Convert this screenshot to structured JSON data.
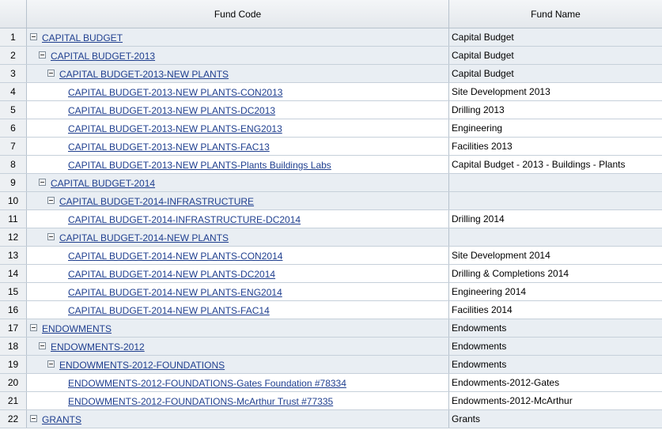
{
  "columns": {
    "fund_code": "Fund Code",
    "fund_name": "Fund Name"
  },
  "rows": [
    {
      "num": "1",
      "level": 0,
      "expandable": true,
      "code": "CAPITAL BUDGET",
      "name": "Capital Budget"
    },
    {
      "num": "2",
      "level": 1,
      "expandable": true,
      "code": "CAPITAL BUDGET-2013",
      "name": "Capital Budget"
    },
    {
      "num": "3",
      "level": 2,
      "expandable": true,
      "code": "CAPITAL BUDGET-2013-NEW PLANTS",
      "name": "Capital Budget"
    },
    {
      "num": "4",
      "level": 3,
      "expandable": false,
      "code": "CAPITAL BUDGET-2013-NEW PLANTS-CON2013",
      "name": "Site Development 2013"
    },
    {
      "num": "5",
      "level": 3,
      "expandable": false,
      "code": "CAPITAL BUDGET-2013-NEW PLANTS-DC2013",
      "name": "Drilling 2013"
    },
    {
      "num": "6",
      "level": 3,
      "expandable": false,
      "code": "CAPITAL BUDGET-2013-NEW PLANTS-ENG2013",
      "name": "Engineering"
    },
    {
      "num": "7",
      "level": 3,
      "expandable": false,
      "code": "CAPITAL BUDGET-2013-NEW PLANTS-FAC13",
      "name": "Facilities 2013"
    },
    {
      "num": "8",
      "level": 3,
      "expandable": false,
      "code": "CAPITAL BUDGET-2013-NEW PLANTS-Plants Buildings Labs",
      "name": "Capital Budget - 2013 - Buildings - Plants"
    },
    {
      "num": "9",
      "level": 1,
      "expandable": true,
      "code": "CAPITAL BUDGET-2014",
      "name": ""
    },
    {
      "num": "10",
      "level": 2,
      "expandable": true,
      "code": "CAPITAL BUDGET-2014-INFRASTRUCTURE",
      "name": ""
    },
    {
      "num": "11",
      "level": 3,
      "expandable": false,
      "code": "CAPITAL BUDGET-2014-INFRASTRUCTURE-DC2014",
      "name": "Drilling 2014"
    },
    {
      "num": "12",
      "level": 2,
      "expandable": true,
      "code": "CAPITAL BUDGET-2014-NEW PLANTS",
      "name": ""
    },
    {
      "num": "13",
      "level": 3,
      "expandable": false,
      "code": "CAPITAL BUDGET-2014-NEW PLANTS-CON2014",
      "name": "Site Development 2014"
    },
    {
      "num": "14",
      "level": 3,
      "expandable": false,
      "code": "CAPITAL BUDGET-2014-NEW PLANTS-DC2014",
      "name": "Drilling & Completions 2014"
    },
    {
      "num": "15",
      "level": 3,
      "expandable": false,
      "code": "CAPITAL BUDGET-2014-NEW PLANTS-ENG2014",
      "name": "Engineering 2014"
    },
    {
      "num": "16",
      "level": 3,
      "expandable": false,
      "code": "CAPITAL BUDGET-2014-NEW PLANTS-FAC14",
      "name": "Facilities 2014"
    },
    {
      "num": "17",
      "level": 0,
      "expandable": true,
      "code": "ENDOWMENTS",
      "name": "Endowments"
    },
    {
      "num": "18",
      "level": 1,
      "expandable": true,
      "code": "ENDOWMENTS-2012",
      "name": "Endowments"
    },
    {
      "num": "19",
      "level": 2,
      "expandable": true,
      "code": "ENDOWMENTS-2012-FOUNDATIONS",
      "name": "Endowments"
    },
    {
      "num": "20",
      "level": 3,
      "expandable": false,
      "code": "ENDOWMENTS-2012-FOUNDATIONS-Gates Foundation #78334",
      "name": "Endowments-2012-Gates"
    },
    {
      "num": "21",
      "level": 3,
      "expandable": false,
      "code": "ENDOWMENTS-2012-FOUNDATIONS-McArthur Trust #77335",
      "name": "Endowments-2012-McArthur"
    },
    {
      "num": "22",
      "level": 0,
      "expandable": true,
      "code": "GRANTS",
      "name": "Grants"
    }
  ],
  "icons": {
    "expanded_toggle": "minus-box-icon"
  }
}
